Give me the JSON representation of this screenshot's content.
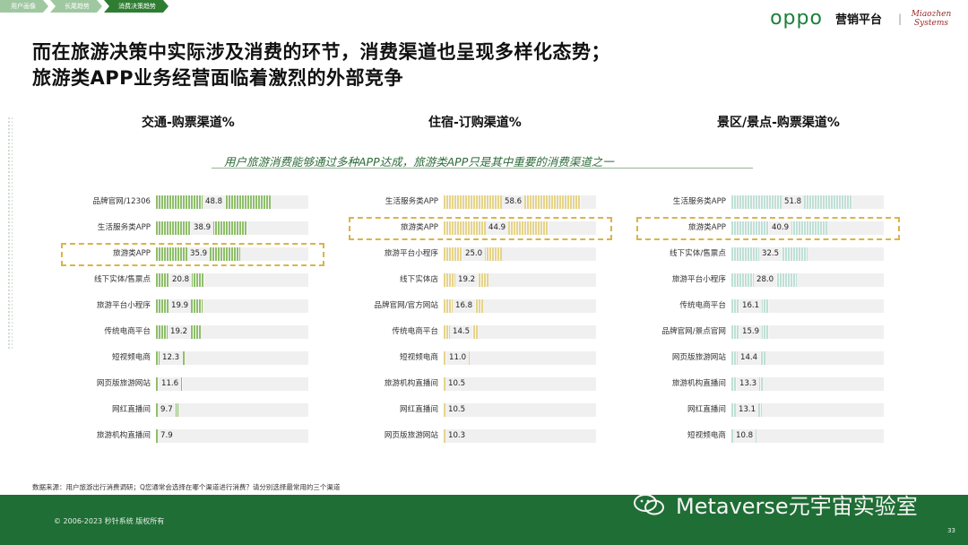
{
  "breadcrumbs": [
    "用户画像",
    "长尾趋势",
    "消费决策趋势"
  ],
  "brand": {
    "logo": "oppo",
    "text": "营销平台",
    "separator": "|",
    "sign_line1": "Miaozhen",
    "sign_line2": "Systems"
  },
  "title_line1": "而在旅游决策中实际涉及消费的环节，消费渠道也呈现多样化态势；",
  "title_line2": "旅游类APP业务经营面临着激烈的外部竞争",
  "callout": "用户旅游消费能够通过多种APP达成，旅游类APP只是其中重要的消费渠道之一",
  "colors": {
    "green": "#8fbf6a",
    "yellow": "#e6d48a",
    "teal": "#bfe0d6",
    "highlight": "#d9b44a",
    "footer": "#1f6e35"
  },
  "chart_data": [
    {
      "type": "bar",
      "title": "交通-购票渠道%",
      "categories": [
        "品牌官网/12306",
        "生活服务类APP",
        "旅游类APP",
        "线下实体/售票点",
        "旅游平台小程序",
        "传统电商平台",
        "短视频电商",
        "网页版旅游网站",
        "网红直播间",
        "旅游机构直播间"
      ],
      "values": [
        48.8,
        38.9,
        35.9,
        20.8,
        19.9,
        19.2,
        12.3,
        11.6,
        9.7,
        7.9
      ],
      "highlight": "旅游类APP",
      "value_labels": [
        "48.8",
        "38.9",
        "35.9",
        "20.8",
        "19.9",
        "19.2",
        "12.3",
        "11.6",
        "9.7",
        "7.9"
      ]
    },
    {
      "type": "bar",
      "title": "住宿-订购渠道%",
      "categories": [
        "生活服务类APP",
        "旅游类APP",
        "旅游平台小程序",
        "线下实体店",
        "品牌官网/官方网站",
        "传统电商平台",
        "短视频电商",
        "旅游机构直播间",
        "网红直播间",
        "网页版旅游网站"
      ],
      "values": [
        58.6,
        44.9,
        25.0,
        19.2,
        16.8,
        14.5,
        11.0,
        10.5,
        10.5,
        10.3
      ],
      "highlight": "旅游类APP",
      "value_labels": [
        "58.6",
        "44.9",
        "25.0",
        "19.2",
        "16.8",
        "14.5",
        "11.0",
        "10.5",
        "10.5",
        "10.3"
      ]
    },
    {
      "type": "bar",
      "title": "景区/景点-购票渠道%",
      "categories": [
        "生活服务类APP",
        "旅游类APP",
        "线下实体/售票点",
        "旅游平台小程序",
        "传统电商平台",
        "品牌官网/景点官网",
        "网页版旅游网站",
        "旅游机构直播间",
        "网红直播间",
        "短视频电商"
      ],
      "values": [
        51.8,
        40.9,
        32.5,
        28.0,
        16.1,
        15.9,
        14.4,
        13.3,
        13.1,
        10.8
      ],
      "highlight": "旅游类APP",
      "value_labels": [
        "51.8",
        "40.9",
        "32.5",
        "28.0",
        "16.1",
        "15.9",
        "14.4",
        "13.3",
        "13.1",
        "10.8"
      ]
    }
  ],
  "source": "数据来源：用户旅游出行消费调研；Q您通常会选择在哪个渠道进行消费？请分别选择最常用的三个渠道",
  "copyright": "© 2006-2023 秒针系统 版权所有",
  "page_number": "33",
  "watermark": "Metaverse元宇宙实验室"
}
